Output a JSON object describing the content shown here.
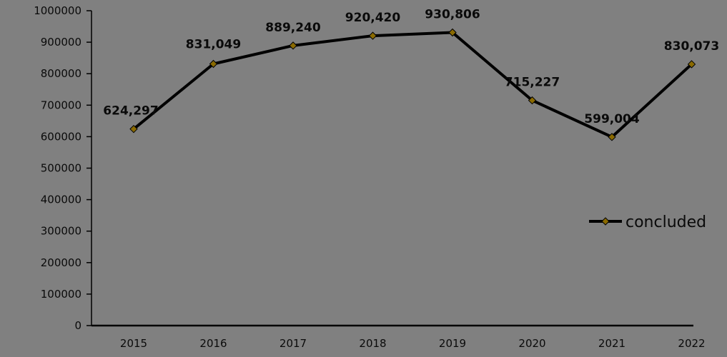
{
  "chart_data": {
    "type": "line",
    "title": "",
    "xlabel": "",
    "ylabel": "",
    "categories": [
      "2015",
      "2016",
      "2017",
      "2018",
      "2019",
      "2020",
      "2021",
      "2022"
    ],
    "series": [
      {
        "name": "concluded",
        "values": [
          624297,
          831049,
          889240,
          920420,
          930806,
          715227,
          599004,
          830073
        ],
        "data_labels": [
          "624,297",
          "831,049",
          "889,240",
          "920,420",
          "930,806",
          "715,227",
          "599,004",
          "830,073"
        ]
      }
    ],
    "ylim": [
      0,
      1000000
    ],
    "y_ticks": [
      "0",
      "100000",
      "200000",
      "300000",
      "400000",
      "500000",
      "600000",
      "700000",
      "800000",
      "900000",
      "1000000"
    ],
    "grid": false,
    "legend_position": "right",
    "colors": {
      "background": "#808080",
      "line": "#000000",
      "marker": "#8a6a00"
    }
  }
}
